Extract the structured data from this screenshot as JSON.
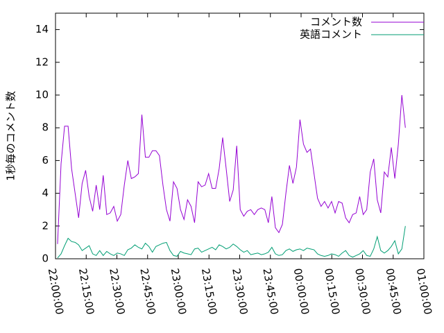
{
  "chart_data": {
    "type": "line",
    "y_label": "1秒毎のコメント数",
    "x": [
      "22:01:00",
      "22:02:43",
      "22:04:26",
      "22:06:09",
      "22:07:52",
      "22:09:35",
      "22:11:18",
      "22:13:01",
      "22:14:44",
      "22:16:27",
      "22:18:10",
      "22:19:53",
      "22:21:36",
      "22:23:19",
      "22:25:02",
      "22:26:45",
      "22:28:28",
      "22:30:11",
      "22:31:54",
      "22:33:37",
      "22:35:20",
      "22:37:03",
      "22:38:46",
      "22:40:29",
      "22:42:12",
      "22:43:55",
      "22:45:38",
      "22:47:21",
      "22:49:04",
      "22:50:47",
      "22:52:30",
      "22:54:13",
      "22:55:56",
      "22:57:39",
      "22:59:22",
      "23:01:05",
      "23:02:48",
      "23:04:31",
      "23:06:14",
      "23:07:57",
      "23:09:40",
      "23:11:23",
      "23:13:06",
      "23:14:49",
      "23:16:32",
      "23:18:15",
      "23:19:58",
      "23:21:41",
      "23:23:24",
      "23:25:07",
      "23:26:50",
      "23:28:33",
      "23:30:16",
      "23:31:59",
      "23:33:42",
      "23:35:25",
      "23:37:08",
      "23:38:51",
      "23:40:34",
      "23:42:17",
      "23:44:00",
      "23:45:43",
      "23:47:26",
      "23:49:09",
      "23:50:52",
      "23:52:35",
      "23:54:18",
      "23:56:01",
      "23:57:44",
      "23:59:27",
      "00:01:10",
      "00:02:53",
      "00:04:36",
      "00:06:19",
      "00:08:02",
      "00:09:45",
      "00:11:28",
      "00:13:11",
      "00:14:54",
      "00:16:37",
      "00:18:20",
      "00:20:03",
      "00:21:46",
      "00:23:29",
      "00:25:12",
      "00:26:55",
      "00:28:38",
      "00:30:21",
      "00:32:04",
      "00:33:47",
      "00:35:30",
      "00:37:13",
      "00:38:56",
      "00:40:39",
      "00:42:22",
      "00:44:05",
      "00:45:48",
      "00:47:31",
      "00:49:14",
      "00:50:57"
    ],
    "series": [
      {
        "name": "コメント数",
        "color": "#9400d3",
        "values": [
          0.9,
          5.8,
          8.1,
          8.1,
          5.5,
          4.0,
          2.5,
          4.6,
          5.4,
          3.8,
          2.9,
          4.5,
          3.0,
          5.1,
          2.7,
          2.8,
          3.2,
          2.3,
          2.7,
          4.5,
          6.0,
          4.9,
          5.0,
          5.2,
          8.8,
          6.2,
          6.2,
          6.6,
          6.6,
          6.3,
          4.5,
          3.0,
          2.3,
          4.7,
          4.3,
          3.0,
          2.4,
          3.6,
          3.2,
          2.2,
          4.7,
          4.4,
          4.5,
          5.2,
          4.3,
          4.3,
          5.5,
          7.4,
          5.5,
          3.5,
          4.2,
          6.9,
          3.0,
          2.6,
          2.9,
          3.0,
          2.7,
          3.0,
          3.1,
          3.0,
          2.2,
          3.8,
          1.9,
          1.6,
          2.1,
          4.0,
          5.7,
          4.6,
          5.6,
          8.5,
          7.0,
          6.5,
          6.7,
          5.2,
          3.7,
          3.2,
          3.5,
          3.1,
          3.5,
          2.8,
          3.5,
          3.4,
          2.5,
          2.2,
          2.7,
          2.8,
          3.8,
          2.7,
          3.0,
          5.3,
          6.1,
          3.6,
          2.8,
          5.3,
          5.0,
          6.8,
          4.9,
          7.0,
          10.0,
          8.0
        ]
      },
      {
        "name": "英語コメント",
        "color": "#009e73",
        "values": [
          0.05,
          0.3,
          0.8,
          1.25,
          1.05,
          1.0,
          0.85,
          0.5,
          0.65,
          0.8,
          0.3,
          0.2,
          0.5,
          0.2,
          0.45,
          0.3,
          0.2,
          0.35,
          0.3,
          0.2,
          0.55,
          0.65,
          0.85,
          0.7,
          0.6,
          0.95,
          0.75,
          0.4,
          0.75,
          0.85,
          0.95,
          1.0,
          0.5,
          0.2,
          0.15,
          0.45,
          0.35,
          0.3,
          0.25,
          0.6,
          0.65,
          0.4,
          0.5,
          0.6,
          0.7,
          0.55,
          0.85,
          0.75,
          0.6,
          0.7,
          0.9,
          0.75,
          0.55,
          0.4,
          0.5,
          0.25,
          0.3,
          0.35,
          0.25,
          0.3,
          0.4,
          0.7,
          0.3,
          0.2,
          0.25,
          0.5,
          0.6,
          0.45,
          0.55,
          0.6,
          0.5,
          0.65,
          0.6,
          0.55,
          0.3,
          0.2,
          0.15,
          0.2,
          0.3,
          0.25,
          0.15,
          0.35,
          0.5,
          0.2,
          0.1,
          0.2,
          0.3,
          0.5,
          0.2,
          0.15,
          0.6,
          1.35,
          0.5,
          0.35,
          0.5,
          0.75,
          1.1,
          0.3,
          0.6,
          2.0
        ]
      }
    ],
    "xlim": [
      "22:00:00",
      "01:00:00"
    ],
    "xticks": [
      "22:00:00",
      "22:15:00",
      "22:30:00",
      "22:45:00",
      "23:00:00",
      "23:15:00",
      "23:30:00",
      "23:45:00",
      "00:00:00",
      "00:15:00",
      "00:30:00",
      "00:45:00",
      "01:00:00"
    ],
    "ylim": [
      0,
      15
    ],
    "yticks": [
      0,
      2,
      4,
      6,
      8,
      10,
      12,
      14
    ],
    "legend": "top-right"
  }
}
